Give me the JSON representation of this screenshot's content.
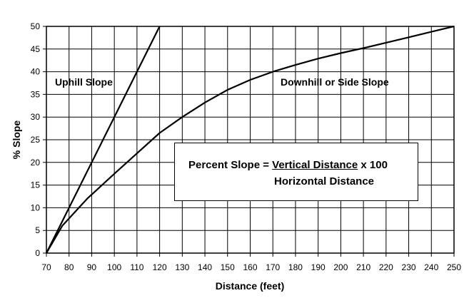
{
  "chart_data": {
    "type": "line",
    "xlabel": "Distance (feet)",
    "ylabel": "% Slope",
    "xlim": [
      70,
      250
    ],
    "ylim": [
      0,
      50
    ],
    "x_ticks": [
      70,
      80,
      90,
      100,
      110,
      120,
      130,
      140,
      150,
      160,
      170,
      180,
      190,
      200,
      210,
      220,
      230,
      240,
      250
    ],
    "y_ticks": [
      0,
      5,
      10,
      15,
      20,
      25,
      30,
      35,
      40,
      45,
      50
    ],
    "grid": true,
    "series": [
      {
        "name": "Uphill Slope",
        "x": [
          70,
          120
        ],
        "y": [
          0,
          50
        ]
      },
      {
        "name": "Downhill or Side Slope",
        "x": [
          70,
          77,
          88,
          100,
          110,
          120,
          130,
          140,
          150,
          160,
          170,
          180,
          190,
          200,
          210,
          220,
          230,
          240,
          250
        ],
        "y": [
          0,
          6,
          12,
          17.5,
          22,
          26.5,
          30,
          33.2,
          36,
          38.2,
          40,
          41.5,
          42.9,
          44.1,
          45.2,
          46.4,
          47.6,
          48.8,
          50
        ]
      }
    ],
    "annotations": {
      "uphill_label": "Uphill Slope",
      "downhill_label": "Downhill or Side Slope",
      "formula_lhs": "Percent Slope = ",
      "formula_numerator": "Vertical Distance",
      "formula_multiplier": " x 100",
      "formula_denominator": "Horizontal Distance"
    }
  }
}
